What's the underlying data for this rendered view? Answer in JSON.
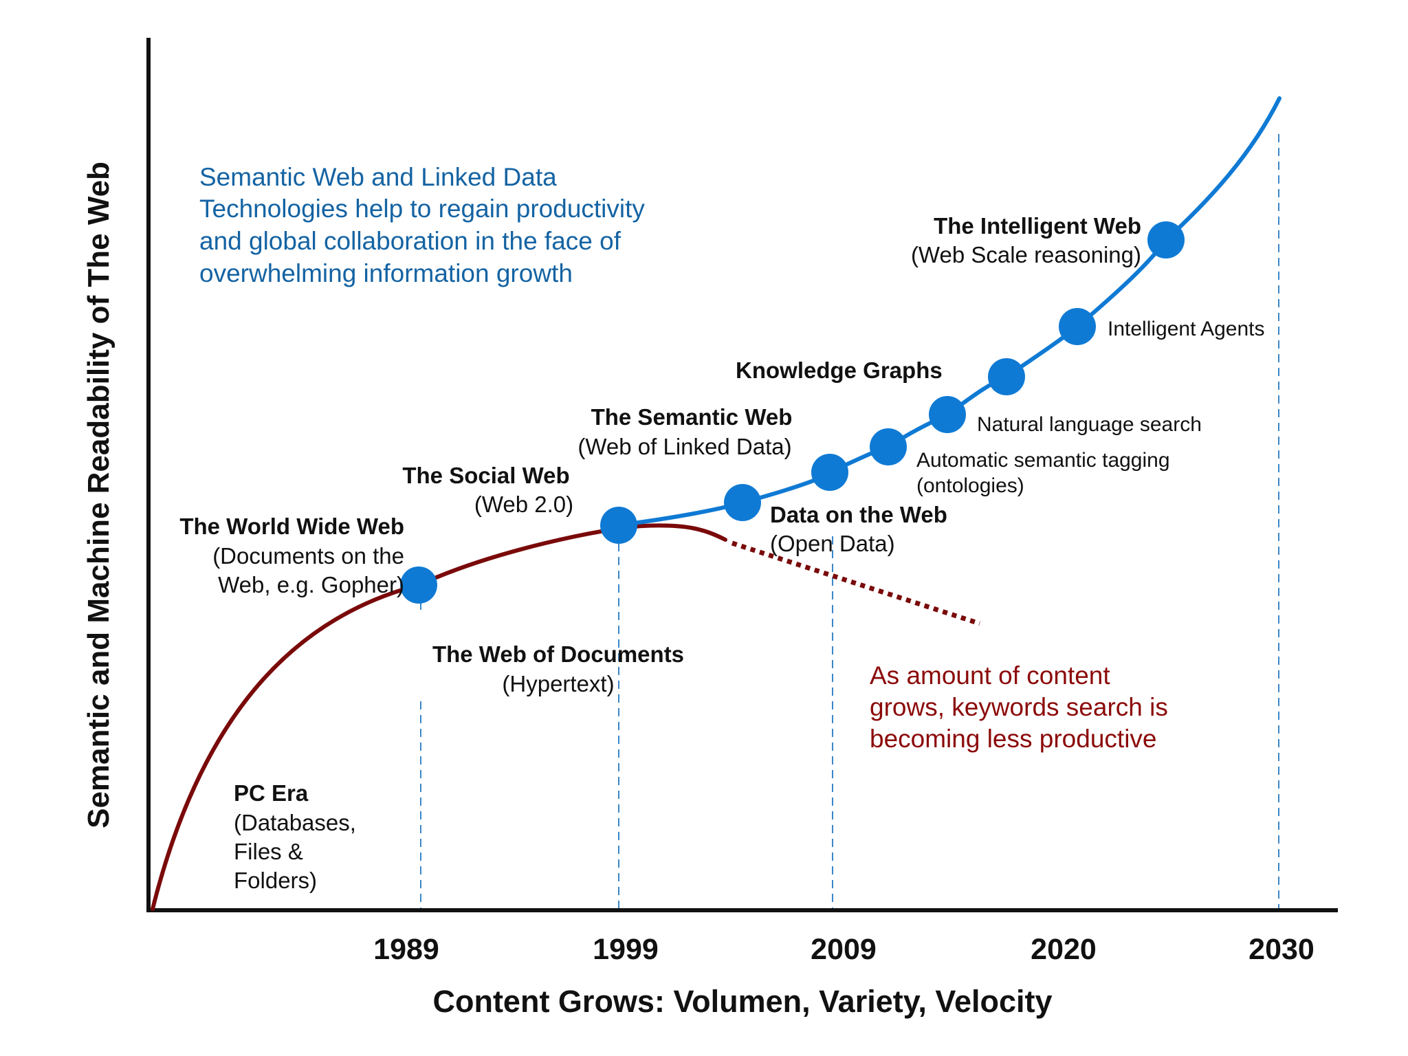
{
  "axes": {
    "y_label": "Semantic and Machine Readability of The Web",
    "x_label": "Content Grows: Volumen, Variety, Velocity",
    "years": [
      "1989",
      "1999",
      "2009",
      "2020",
      "2030"
    ]
  },
  "intro_text": [
    "Semantic Web and Linked Data",
    "Technologies help to regain productivity",
    "and global collaboration in the face of",
    "overwhelming information growth"
  ],
  "warning_text": [
    "As amount of content",
    "grows, keywords search is",
    "becoming less productive"
  ],
  "stages": {
    "pc_era": {
      "title": "PC Era",
      "sub": [
        "(Databases,",
        "Files &",
        "Folders)"
      ]
    },
    "www": {
      "title": "The World Wide Web",
      "sub": [
        "(Documents on the",
        "Web, e.g. Gopher)"
      ]
    },
    "web_of_docs": {
      "title": "The Web of Documents",
      "sub": [
        "(Hypertext)"
      ]
    },
    "social_web": {
      "title": "The Social Web",
      "sub": [
        "(Web 2.0)"
      ]
    },
    "semantic_web": {
      "title": "The Semantic Web",
      "sub": [
        "(Web of Linked Data)"
      ]
    },
    "data_on_web": {
      "title": "Data on the Web",
      "sub": [
        "(Open Data)"
      ]
    },
    "knowledge_graphs": {
      "title": "Knowledge Graphs"
    },
    "intelligent_web": {
      "title": "The Intelligent  Web",
      "sub": [
        "(Web Scale reasoning)"
      ]
    }
  },
  "milestones": {
    "semantic_tagging": [
      "Automatic semantic tagging",
      "(ontologies)"
    ],
    "nl_search": "Natural language search",
    "agents": "Intelligent Agents"
  },
  "colors": {
    "blue_curve": "#0f7ad4",
    "red_curve": "#7a0a0a",
    "intro_text": "#1463a3",
    "warning_text": "#8b0a0a",
    "axis": "#111111",
    "dashed_guides": "#3a86c8"
  }
}
